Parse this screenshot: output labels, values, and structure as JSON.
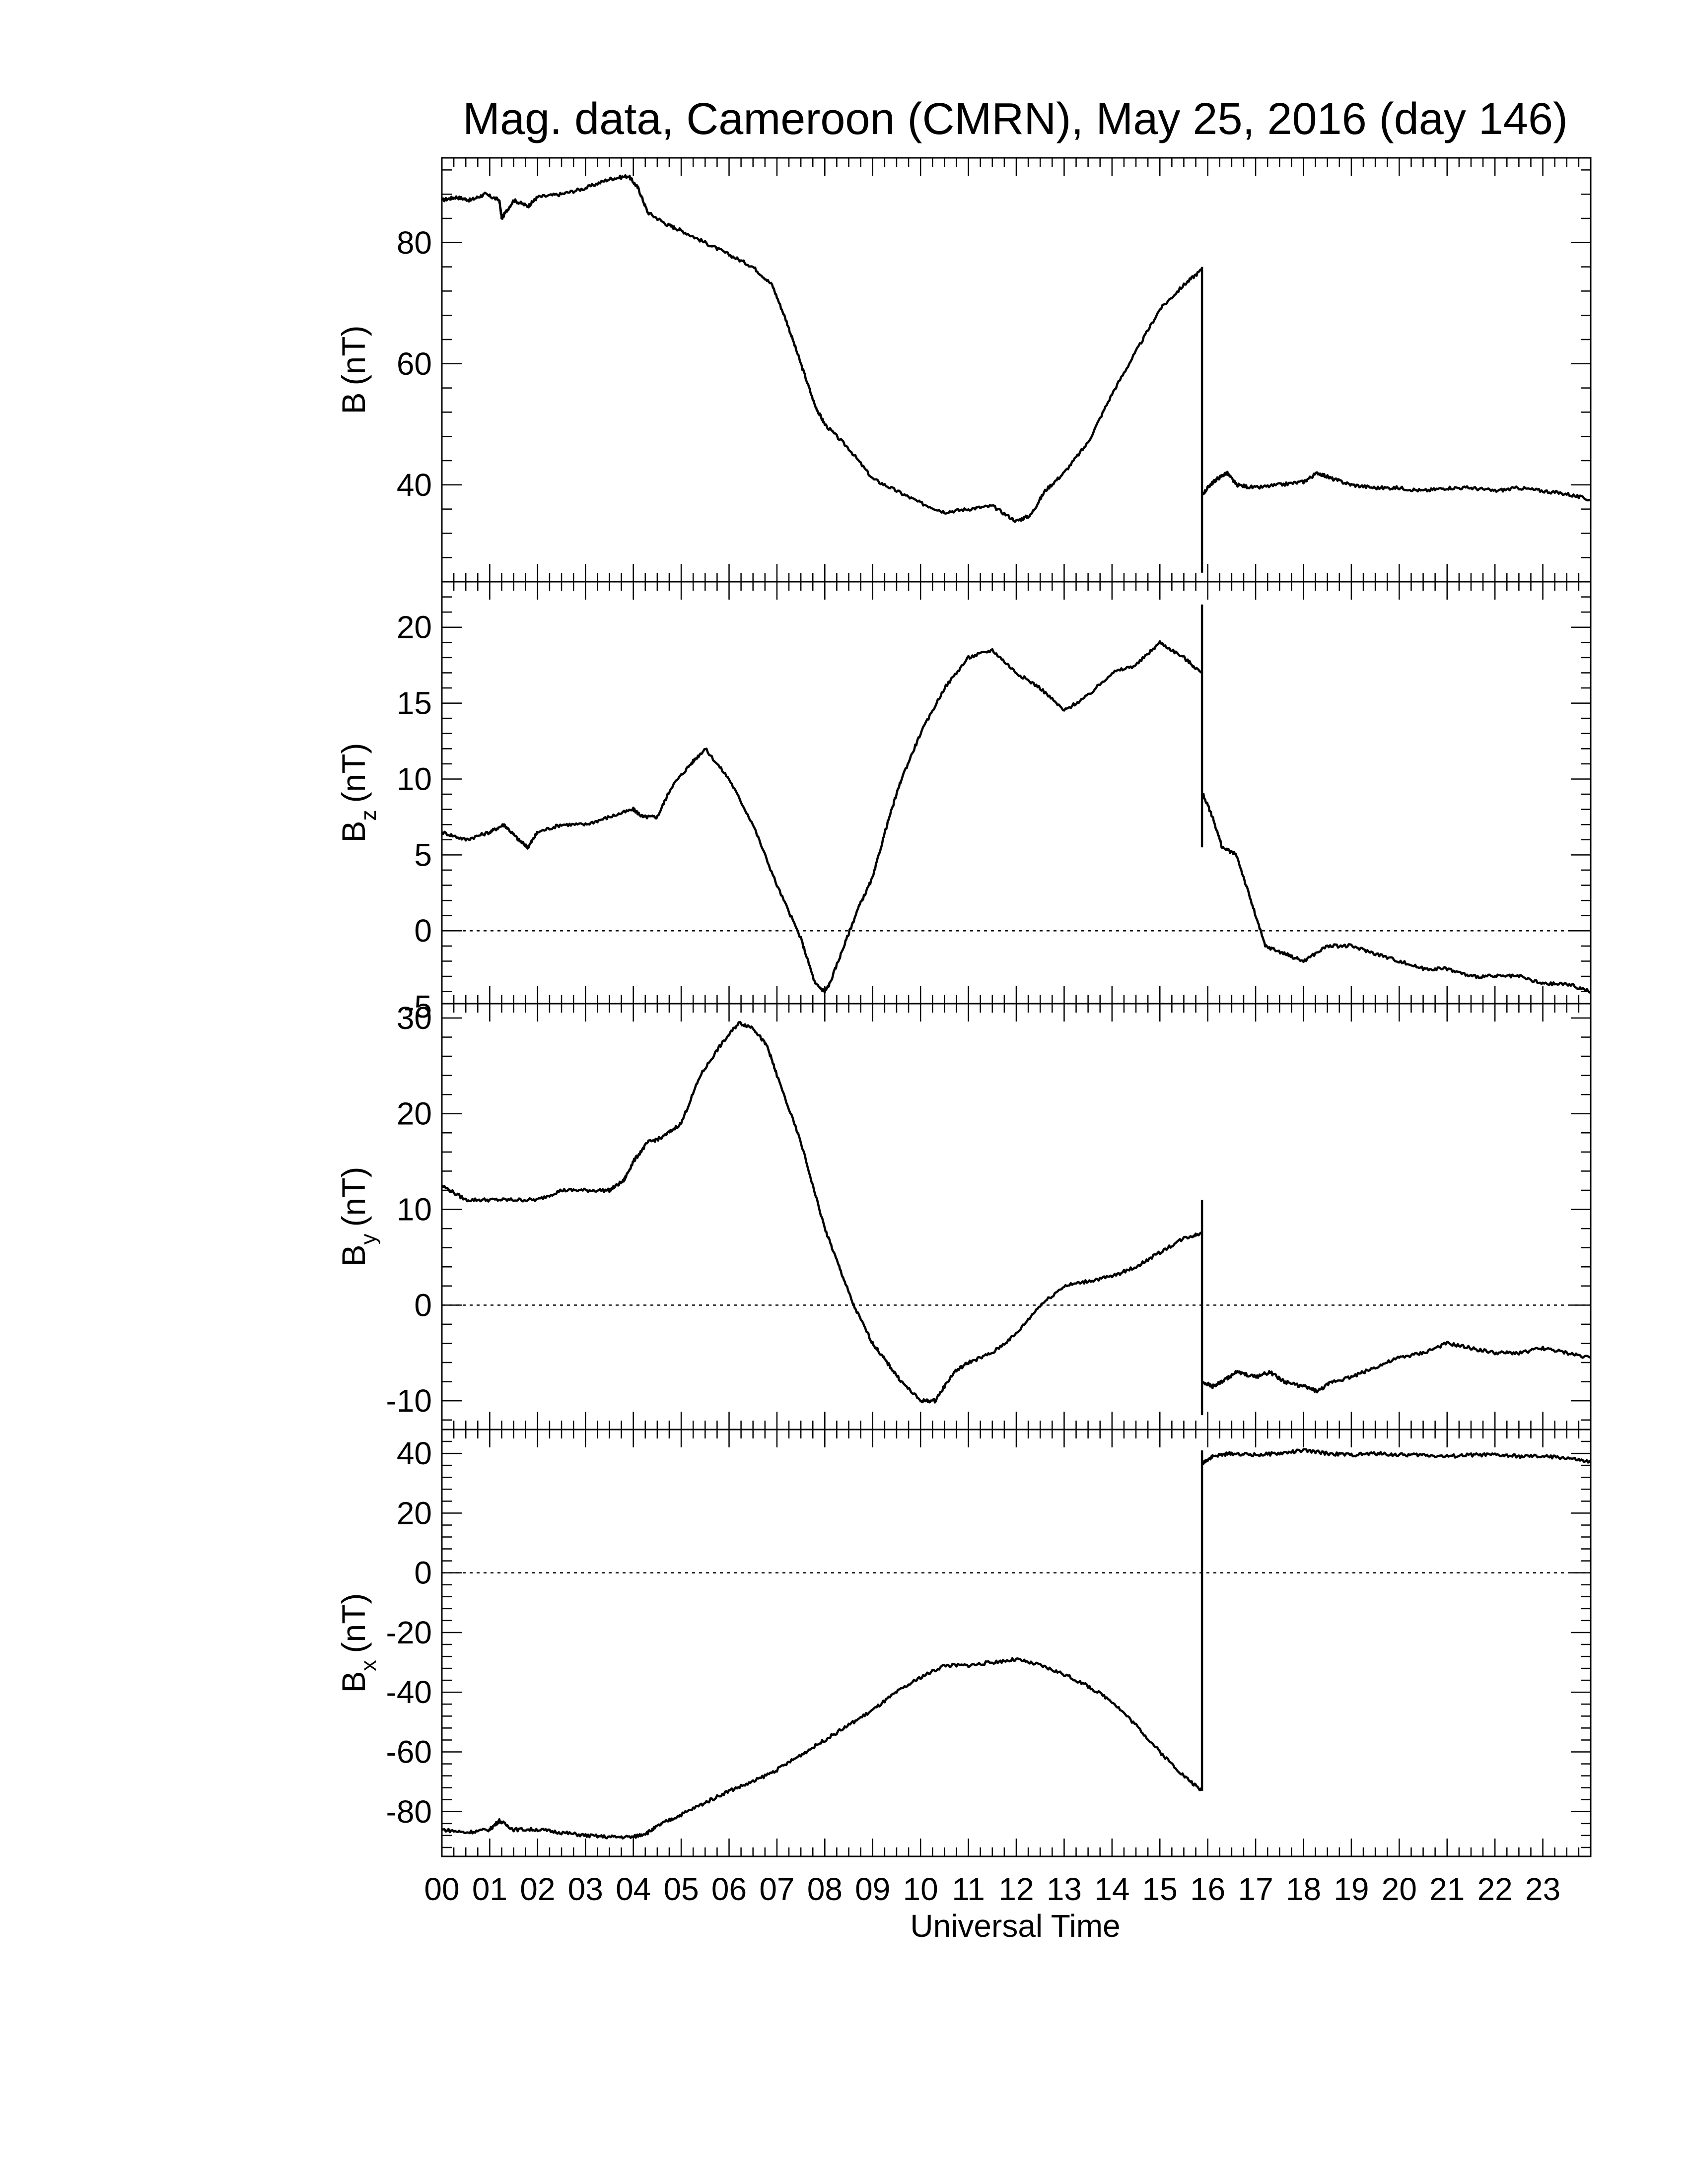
{
  "title": "Mag. data, Cameroon (CMRN), May 25, 2016 (day 146)",
  "chart_data": {
    "type": "line",
    "title": "Mag. data, Cameroon (CMRN), May 25, 2016 (day 146)",
    "xlabel": "Universal Time",
    "x_tick_labels": [
      "00",
      "01",
      "02",
      "03",
      "04",
      "05",
      "06",
      "07",
      "08",
      "09",
      "10",
      "11",
      "12",
      "13",
      "14",
      "15",
      "16",
      "17",
      "18",
      "19",
      "20",
      "21",
      "22",
      "23"
    ],
    "xlim": [
      0,
      24
    ],
    "x_unit": "hours UT",
    "grid": false,
    "line_color": "#000000",
    "panels": [
      {
        "id": "B",
        "ylabel_main": "B",
        "ylabel_sub": "",
        "ylabel_unit": "(nT)",
        "ylim": [
          24,
          94
        ],
        "yticks": [
          40,
          60,
          80
        ],
        "ytick_labels": [
          "40",
          "60",
          "80"
        ],
        "zero_line": false,
        "series": [
          {
            "x": [
              0,
              0.3,
              0.6,
              0.9,
              1.2,
              1.25,
              1.5,
              1.8,
              2.0,
              2.5,
              3.0,
              3.5,
              3.9,
              4.1,
              4.3,
              4.7,
              5.0,
              5.5,
              6.0,
              6.5,
              6.9,
              7.2,
              7.5,
              7.8,
              8.0,
              8.5,
              9.0,
              9.5,
              10.0,
              10.5,
              11.0,
              11.5,
              12.0,
              12.3,
              12.6,
              13.0,
              13.5,
              14.0,
              14.5,
              15.0,
              15.5,
              15.87
            ],
            "y": [
              87,
              87.5,
              87,
              88,
              87,
              84,
              87,
              86,
              87.5,
              88,
              89,
              90.5,
              91,
              89,
              85,
              83,
              82,
              80,
              78,
              76,
              73,
              67,
              60,
              53,
              50,
              46,
              41,
              39,
              37,
              35.5,
              36,
              36.5,
              34,
              35,
              39,
              42,
              47,
              55,
              62,
              69,
              73,
              75.5
            ]
          },
          {
            "x": [
              15.9,
              16.05,
              16.2,
              16.4,
              16.6,
              17.0,
              17.5,
              18.0,
              18.3,
              18.6,
              19.0,
              19.5,
              20.0,
              20.5,
              21.0,
              21.5,
              22.0,
              22.5,
              23.0,
              23.5,
              24.0
            ],
            "y": [
              38.5,
              40,
              41,
              42,
              40,
              39.5,
              40,
              40.5,
              42,
              41,
              40,
              39.5,
              39.5,
              39,
              39.5,
              39.5,
              39,
              39.5,
              39,
              38.5,
              37.5
            ]
          }
        ],
        "spike": {
          "x": 15.88,
          "y_from": 25.5,
          "y_to": 76
        }
      },
      {
        "id": "Bz",
        "ylabel_main": "B",
        "ylabel_sub": "z",
        "ylabel_unit": "(nT)",
        "ylim": [
          -4.8,
          23
        ],
        "yticks": [
          -5,
          0,
          5,
          10,
          15,
          20
        ],
        "ytick_labels": [
          "-5",
          "0",
          "5",
          "10",
          "15",
          "20"
        ],
        "zero_line": true,
        "series": [
          {
            "x": [
              0,
              0.5,
              1.0,
              1.3,
              1.6,
              1.8,
              2.0,
              2.5,
              3.0,
              3.5,
              4.0,
              4.2,
              4.5,
              4.8,
              5.2,
              5.5,
              6.0,
              6.5,
              7.0,
              7.5,
              7.8,
              8.0,
              8.1,
              8.4,
              8.7,
              9.0,
              9.3,
              9.6,
              10.0,
              10.5,
              11.0,
              11.5,
              12.0,
              12.5,
              13.0,
              13.5,
              14.0,
              14.5,
              15.0,
              15.5,
              15.87
            ],
            "y": [
              6.5,
              6,
              6.5,
              7,
              6,
              5.5,
              6.5,
              7,
              7,
              7.5,
              8,
              7.5,
              7.5,
              9.5,
              11,
              12,
              10,
              7,
              3,
              -0.5,
              -3.5,
              -4,
              -3.5,
              -1,
              1.5,
              3.5,
              7,
              10,
              13,
              16,
              18,
              18.5,
              17,
              16,
              14.5,
              15.5,
              17,
              17.5,
              19,
              18,
              17
            ]
          },
          {
            "x": [
              15.9,
              16.1,
              16.3,
              16.6,
              16.9,
              17.2,
              17.6,
              18.0,
              18.5,
              19.0,
              19.5,
              20.0,
              20.5,
              21.0,
              21.5,
              22.0,
              22.5,
              23.0,
              23.5,
              24.0
            ],
            "y": [
              9,
              7.5,
              5.5,
              5,
              2,
              -1,
              -1.5,
              -2,
              -1,
              -1,
              -1.5,
              -2,
              -2.5,
              -2.5,
              -3,
              -3,
              -3,
              -3.5,
              -3.5,
              -4
            ]
          }
        ],
        "spike": {
          "x": 15.88,
          "y_from": 5.5,
          "y_to": 21.5
        }
      },
      {
        "id": "By",
        "ylabel_main": "B",
        "ylabel_sub": "y",
        "ylabel_unit": "(nT)",
        "ylim": [
          -13,
          31.5
        ],
        "yticks": [
          -10,
          0,
          10,
          20,
          30
        ],
        "ytick_labels": [
          "-10",
          "0",
          "10",
          "20",
          "30"
        ],
        "zero_line": true,
        "series": [
          {
            "x": [
              0,
              0.5,
              1.0,
              1.5,
              2.0,
              2.5,
              3.0,
              3.5,
              3.8,
              4.0,
              4.3,
              4.6,
              5.0,
              5.4,
              5.8,
              6.2,
              6.5,
              6.8,
              7.0,
              7.5,
              8.0,
              8.3,
              8.6,
              9.0,
              9.3,
              9.6,
              10.0,
              10.3,
              10.7,
              11.0,
              11.5,
              12.0,
              12.5,
              13.0,
              13.5,
              14.0,
              14.5,
              15.0,
              15.5,
              15.87
            ],
            "y": [
              12.5,
              11,
              11,
              11,
              11,
              12,
              12,
              12,
              13,
              15,
              17,
              17.5,
              19,
              24,
              27,
              29.5,
              29,
              27,
              24,
              17,
              8,
              4,
              0,
              -4,
              -6,
              -8,
              -10,
              -10,
              -7,
              -6,
              -5,
              -3,
              0,
              2,
              2.5,
              3,
              4,
              5.5,
              7,
              7.5
            ]
          },
          {
            "x": [
              15.9,
              16.1,
              16.3,
              16.6,
              17.0,
              17.3,
              17.6,
              18.0,
              18.3,
              18.6,
              19.0,
              19.5,
              20.0,
              20.5,
              21.0,
              21.5,
              22.0,
              22.5,
              23.0,
              23.5,
              24.0
            ],
            "y": [
              -8,
              -8.5,
              -8,
              -7,
              -7.5,
              -7,
              -8,
              -8.5,
              -9,
              -8,
              -7.5,
              -6.5,
              -5.5,
              -5,
              -4,
              -4.5,
              -5,
              -5,
              -4.5,
              -5,
              -5.5
            ]
          }
        ],
        "spike": {
          "x": 15.88,
          "y_from": -11.5,
          "y_to": 11
        }
      },
      {
        "id": "Bx",
        "ylabel_main": "B",
        "ylabel_sub": "x",
        "ylabel_unit": "(nT)",
        "ylim": [
          -95,
          48
        ],
        "yticks": [
          -80,
          -60,
          -40,
          -20,
          0,
          20,
          40
        ],
        "ytick_labels": [
          "-80",
          "-60",
          "-40",
          "-20",
          "0",
          "20",
          "40"
        ],
        "zero_line": true,
        "series": [
          {
            "x": [
              0,
              0.5,
              1.0,
              1.2,
              1.5,
              2.0,
              2.5,
              3.0,
              3.5,
              4.0,
              4.3,
              4.6,
              5.0,
              5.5,
              6.0,
              6.5,
              7.0,
              7.5,
              8.0,
              8.5,
              9.0,
              9.5,
              10.0,
              10.5,
              11.0,
              11.5,
              12.0,
              12.5,
              13.0,
              13.5,
              14.0,
              14.5,
              15.0,
              15.5,
              15.87
            ],
            "y": [
              -86,
              -87,
              -86,
              -83,
              -86,
              -86,
              -87,
              -88,
              -88.5,
              -88.5,
              -87,
              -84,
              -81,
              -77,
              -73,
              -70,
              -66,
              -61,
              -56,
              -51,
              -46,
              -40,
              -35,
              -31,
              -31,
              -30,
              -29,
              -31,
              -34,
              -38,
              -43,
              -51,
              -60,
              -68,
              -73
            ]
          },
          {
            "x": [
              15.9,
              16.1,
              16.5,
              17.0,
              17.5,
              18.0,
              18.5,
              19.0,
              19.5,
              20.0,
              20.5,
              21.0,
              21.5,
              22.0,
              22.5,
              23.0,
              23.5,
              24.0
            ],
            "y": [
              37,
              39,
              40,
              39.5,
              40,
              41,
              40,
              39.5,
              40,
              39.5,
              39.5,
              39,
              39.5,
              39.5,
              39,
              39,
              38.5,
              37
            ]
          }
        ],
        "spike": {
          "x": 15.88,
          "y_from": -73,
          "y_to": 41
        }
      }
    ]
  }
}
